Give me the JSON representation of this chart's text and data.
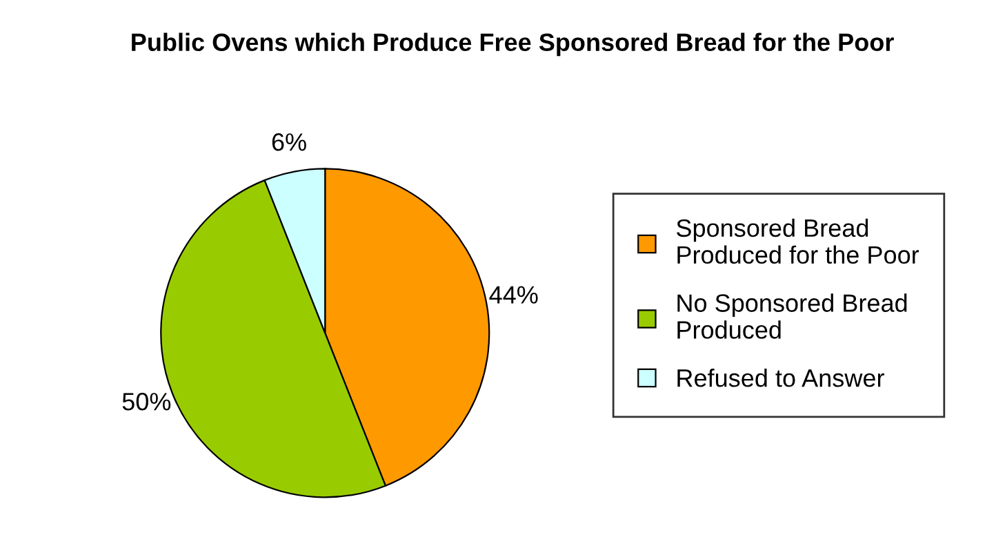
{
  "chart_data": {
    "type": "pie",
    "title": "Public Ovens which Produce Free Sponsored Bread for the Poor",
    "categories": [
      "Sponsored Bread\nProduced for the Poor",
      "No Sponsored Bread\nProduced",
      "Refused to Answer"
    ],
    "values": [
      44,
      50,
      6
    ],
    "value_labels": [
      "44%",
      "50%",
      "6%"
    ],
    "colors": [
      "#ff9900",
      "#99cc00",
      "#ccffff"
    ],
    "legend": "right"
  }
}
